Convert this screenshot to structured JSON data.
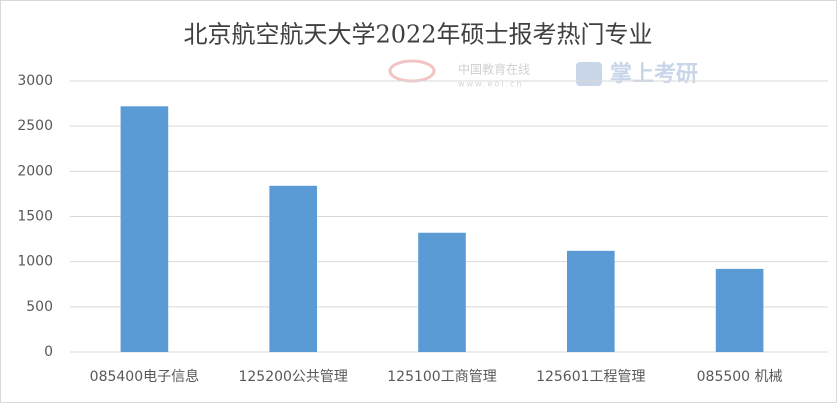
{
  "chart_data": {
    "type": "bar",
    "title": "北京航空航天大学2022年硕士报考热门专业",
    "categories": [
      "085400电子信息",
      "125200公共管理",
      "125100工商管理",
      "125601工程管理",
      "085500 机械"
    ],
    "values": [
      2720,
      1840,
      1320,
      1120,
      920
    ],
    "color": "#5b9bd5",
    "ylim": [
      0,
      3000
    ],
    "yticks": [
      0,
      500,
      1000,
      1500,
      2000,
      2500,
      3000
    ],
    "grid": true,
    "watermarks": [
      "中国教育在线",
      "www.eol.cn",
      "掌上考研"
    ]
  }
}
